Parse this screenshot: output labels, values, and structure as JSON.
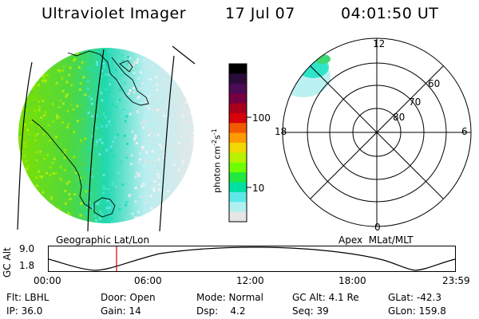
{
  "header": {
    "instrument": "Ultraviolet Imager",
    "date": "17 Jul 07",
    "time": "04:01:50 UT"
  },
  "colorbar": {
    "label": "photon cm-2s-1",
    "label_html_base": "photon cm",
    "sup1": "-2",
    "mid": "s",
    "sup2": "-1",
    "ticks": [
      "100",
      "10"
    ],
    "colors": [
      "#000000",
      "#2a0b3a",
      "#4b0b55",
      "#75003f",
      "#a8001c",
      "#d8000a",
      "#f25a00",
      "#ff9a00",
      "#f0d800",
      "#b8f000",
      "#70ff00",
      "#20e840",
      "#00e0a0",
      "#60e8e8",
      "#b0f0f0",
      "#e6e6e6"
    ]
  },
  "left_panel": {
    "caption": "Geographic Lat/Lon"
  },
  "right_panel": {
    "caption": "Apex  MLat/MLT",
    "mlt_labels": {
      "top": "12",
      "left": "18",
      "right": "6",
      "bottom": "0"
    },
    "lat_labels": [
      "60",
      "70",
      "80"
    ]
  },
  "timeline": {
    "ylabel": "GC Alt",
    "ymax": "9.0",
    "ymin": "1.8",
    "ticks": [
      "00:00",
      "06:00",
      "12:00",
      "18:00",
      "23:59"
    ],
    "marker_fraction": 0.167,
    "marker_color": "#cc0000"
  },
  "info": {
    "flt": "Flt: LBHL",
    "ip": "IP: 36.0",
    "door": "Door: Open",
    "gain": "Gain: 14",
    "mode": "Mode: Normal",
    "dsp": "Dsp:    4.2",
    "gcalt": "GC Alt: 4.1 Re",
    "seq": "Seq: 39",
    "glat": "GLat: -42.3",
    "glon": "GLon: 159.8"
  }
}
